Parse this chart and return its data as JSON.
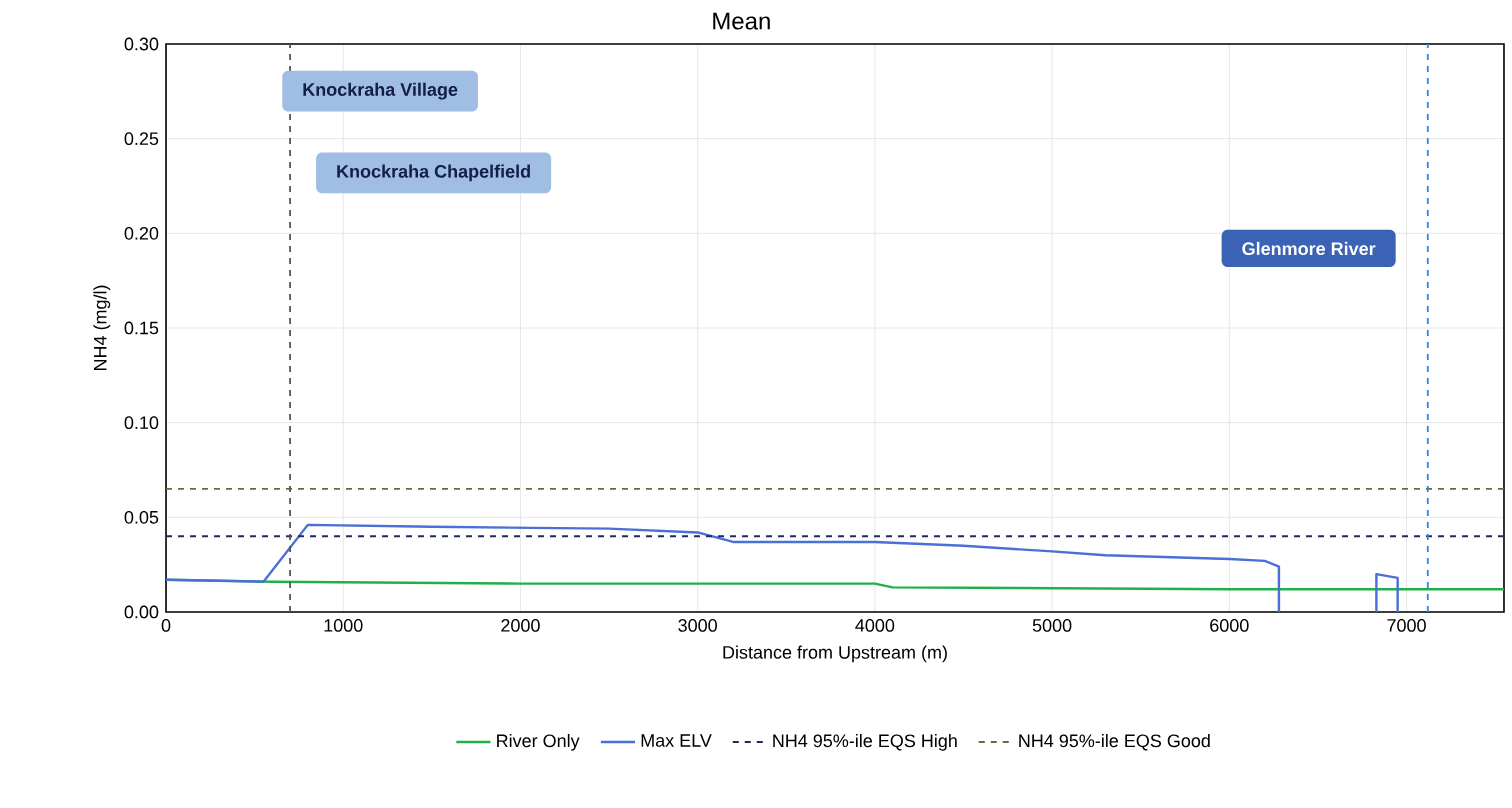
{
  "chart_data": {
    "type": "line",
    "title": "Mean",
    "xlabel": "Distance from Upstream (m)",
    "ylabel": "NH4  (mg/l)",
    "xlim": [
      0,
      7550
    ],
    "ylim": [
      0,
      0.3
    ],
    "xticks": [
      0,
      1000,
      2000,
      3000,
      4000,
      5000,
      6000,
      7000
    ],
    "yticks": [
      {
        "value": 0,
        "label": "0.00"
      },
      {
        "value": 0.05,
        "label": "0.05"
      },
      {
        "value": 0.1,
        "label": "0.10"
      },
      {
        "value": 0.15,
        "label": "0.15"
      },
      {
        "value": 0.2,
        "label": "0.20"
      },
      {
        "value": 0.25,
        "label": "0.25"
      },
      {
        "value": 0.3,
        "label": "0.30"
      }
    ],
    "grid": true,
    "legend": "bottom",
    "marker": "none",
    "line_style": "solid",
    "series": [
      {
        "name": "River Only",
        "color": "#1fb04a",
        "x": [
          0,
          600,
          2000,
          4000,
          4100,
          6000,
          7550
        ],
        "values": [
          0.017,
          0.016,
          0.015,
          0.015,
          0.013,
          0.012,
          0.012
        ]
      },
      {
        "name": "Max ELV",
        "color": "#4a6fd6",
        "x": [
          0,
          550,
          800,
          1500,
          2500,
          3000,
          3200,
          4000,
          4500,
          5000,
          5300,
          6000,
          6200,
          6280,
          6280,
          6500,
          6830,
          6830,
          6950,
          6950
        ],
        "values": [
          0.017,
          0.016,
          0.046,
          0.045,
          0.044,
          0.042,
          0.037,
          0.037,
          0.035,
          0.032,
          0.03,
          0.028,
          0.027,
          0.024,
          0,
          null,
          0,
          0.02,
          0.018,
          0
        ]
      }
    ],
    "ref_lines": [
      {
        "axis": "y",
        "value": 0.04,
        "label": "NH4 95%-ile EQS High",
        "color": "#1f2a5c",
        "line_style": "dashed"
      },
      {
        "axis": "y",
        "value": 0.065,
        "label": "NH4 95%-ile EQS Good",
        "color": "#6b6a3a",
        "line_style": "dashed"
      },
      {
        "axis": "x",
        "value": 700,
        "color": "#555555",
        "line_style": "dashed"
      },
      {
        "axis": "x",
        "value": 7120,
        "color": "#2e86de",
        "line_style": "dashed"
      }
    ],
    "annotations": [
      "Knockraha Village",
      "Knockraha Chapelfield",
      "Glenmore River"
    ]
  }
}
